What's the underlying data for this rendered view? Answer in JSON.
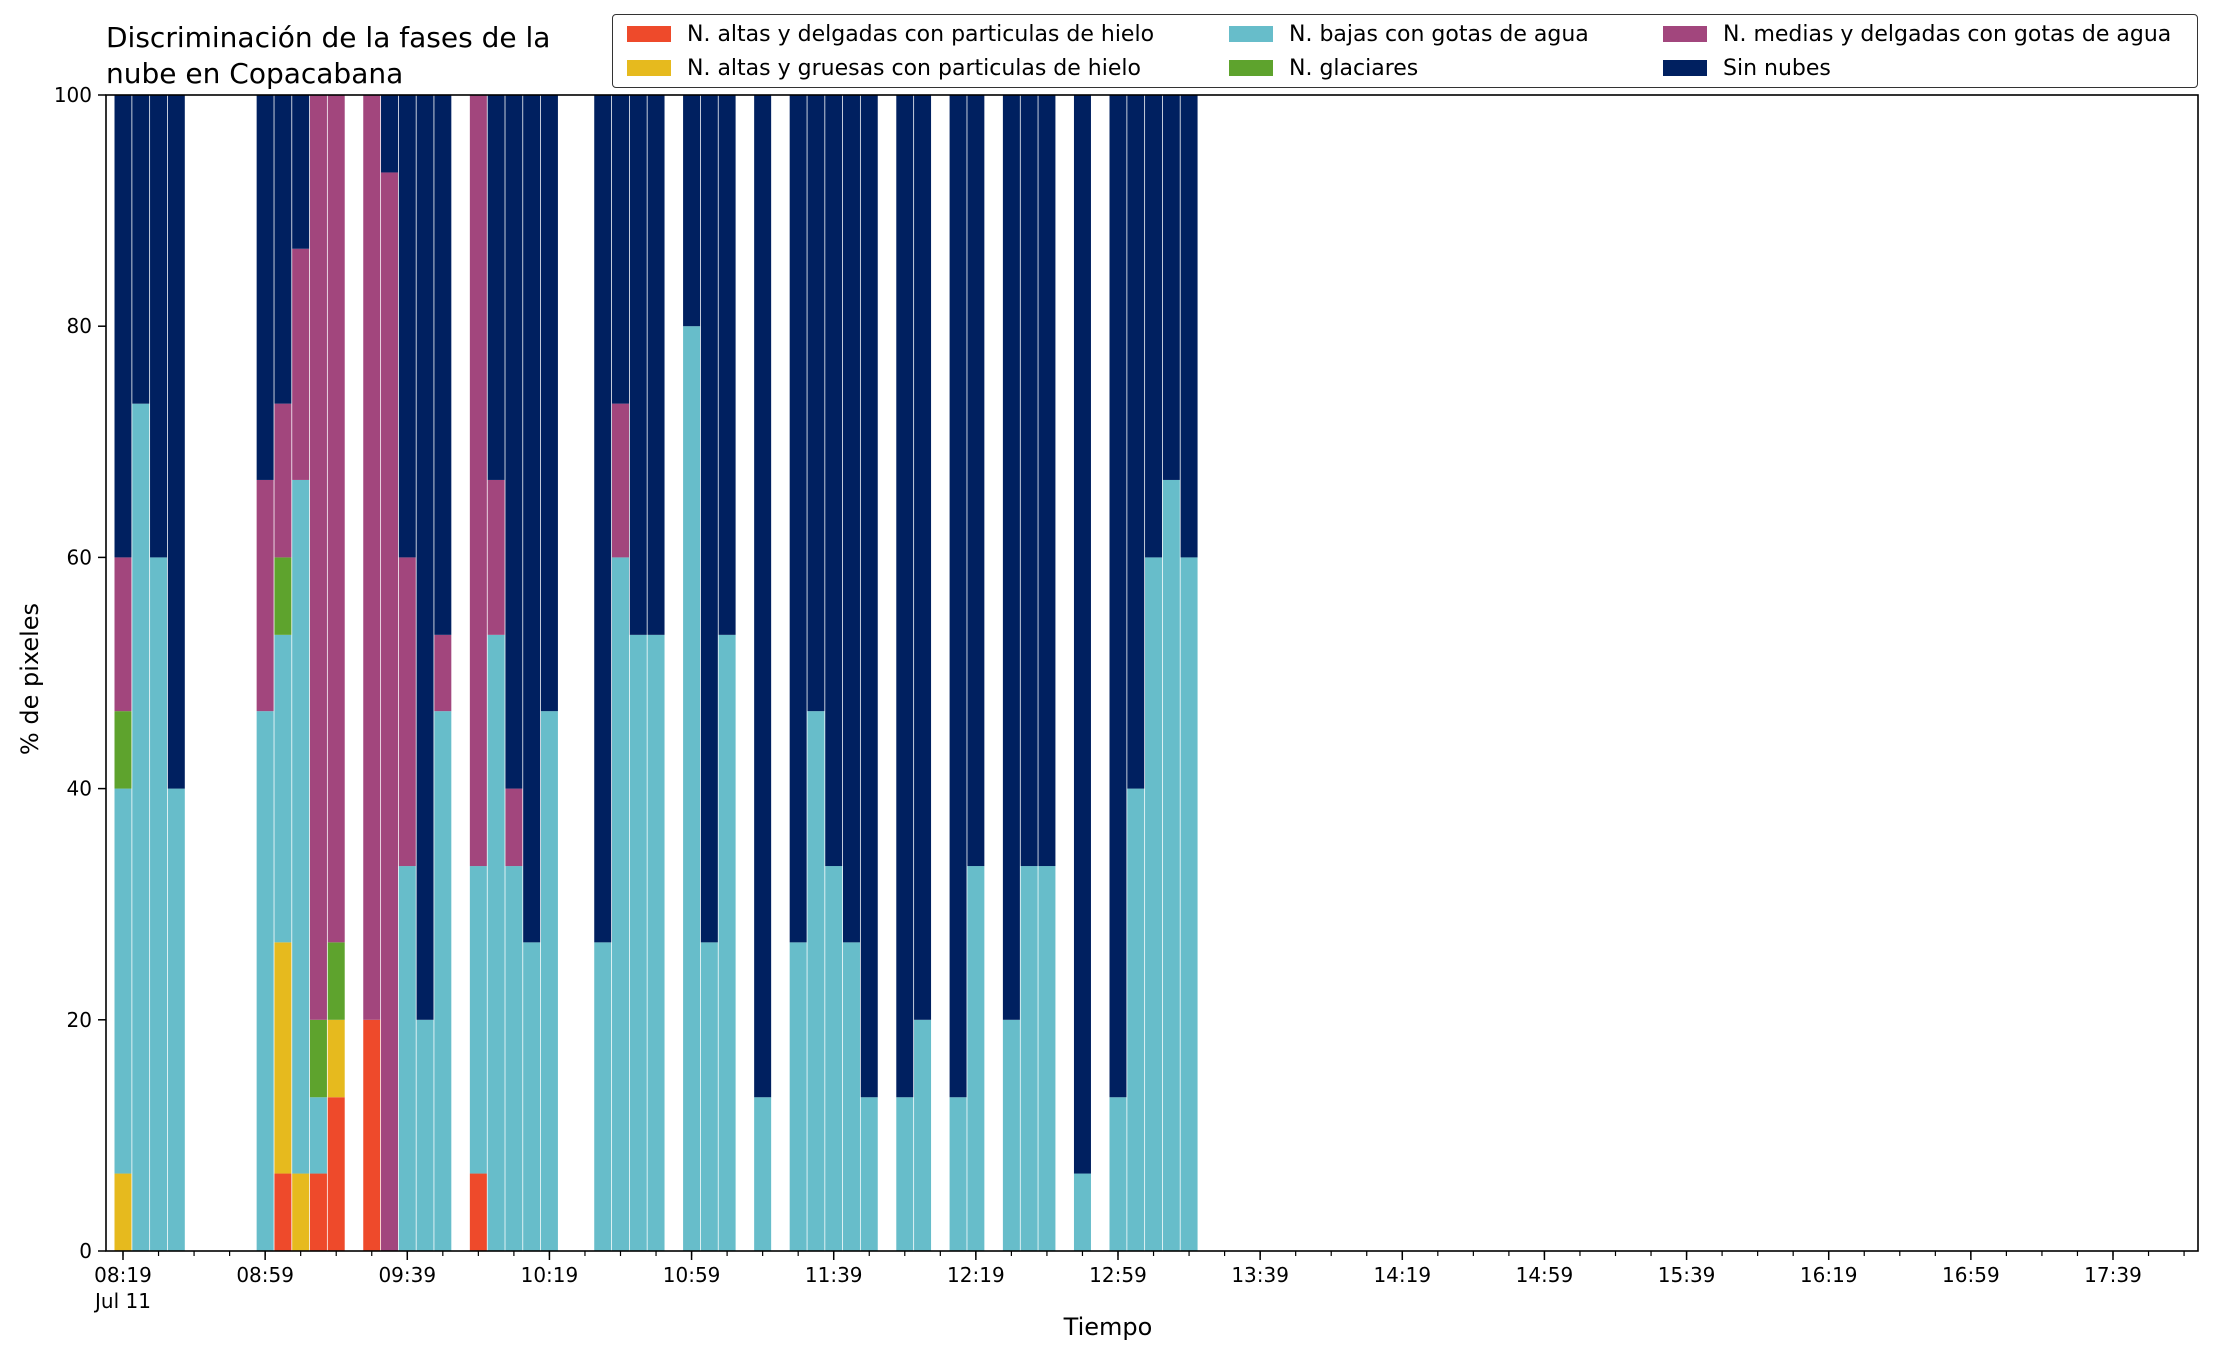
{
  "chart_data": {
    "type": "bar",
    "stacked": true,
    "title_lines": [
      "Discriminación de la fases de la",
      "nube en Copacabana"
    ],
    "xlabel": "Tiempo",
    "ylabel": "% de pixeles",
    "ylim": [
      0,
      100
    ],
    "y_ticks": [
      "0",
      "20",
      "40",
      "60",
      "80",
      "100"
    ],
    "x_tick_labels": [
      "08:19",
      "08:59",
      "09:39",
      "10:19",
      "10:59",
      "11:39",
      "12:19",
      "12:59",
      "13:39",
      "14:19",
      "14:59",
      "15:39",
      "16:19",
      "16:59",
      "17:39"
    ],
    "x_date_label": "Jul 11",
    "grid": false,
    "legend_position": "top-right",
    "series": [
      {
        "name": "N. altas y delgadas con particulas de hielo",
        "color": "#EE4A2B"
      },
      {
        "name": "N. altas y gruesas con particulas de hielo",
        "color": "#E6BA1E"
      },
      {
        "name": "N. bajas con gotas de agua",
        "color": "#67BDCA"
      },
      {
        "name": "N. glaciares",
        "color": "#5EA32D"
      },
      {
        "name": "N. medias y delgadas con gotas de agua",
        "color": "#A2467D"
      },
      {
        "name": "Sin nubes",
        "color": "#002060"
      }
    ],
    "bars": [
      {
        "time": "08:19",
        "values": [
          0,
          6.7,
          33.3,
          6.7,
          13.3,
          40
        ]
      },
      {
        "time": "08:24",
        "values": [
          0,
          0,
          73.3,
          0,
          0,
          26.7
        ]
      },
      {
        "time": "08:29",
        "values": [
          0,
          0,
          60,
          0,
          0,
          40
        ]
      },
      {
        "time": "08:34",
        "values": [
          0,
          0,
          40,
          0,
          0,
          60
        ]
      },
      {
        "time": "08:59",
        "values": [
          0,
          0,
          46.7,
          0,
          20,
          33.3
        ]
      },
      {
        "time": "09:04",
        "values": [
          6.7,
          20,
          26.6,
          6.7,
          13.3,
          26.7
        ]
      },
      {
        "time": "09:09",
        "values": [
          0,
          6.7,
          60,
          0,
          20,
          13.3
        ]
      },
      {
        "time": "09:14",
        "values": [
          6.7,
          0,
          6.6,
          6.7,
          80,
          0
        ]
      },
      {
        "time": "09:19",
        "values": [
          13.3,
          6.7,
          0,
          6.7,
          73.3,
          0
        ]
      },
      {
        "time": "09:29",
        "values": [
          20,
          0,
          0,
          0,
          80,
          0
        ]
      },
      {
        "time": "09:34",
        "values": [
          0,
          0,
          0,
          0,
          93.3,
          6.7
        ]
      },
      {
        "time": "09:39",
        "values": [
          0,
          0,
          33.3,
          0,
          26.7,
          40
        ]
      },
      {
        "time": "09:44",
        "values": [
          0,
          0,
          20,
          0,
          0,
          80
        ]
      },
      {
        "time": "09:49",
        "values": [
          0,
          0,
          46.7,
          0,
          6.6,
          46.7
        ]
      },
      {
        "time": "09:59",
        "values": [
          6.7,
          0,
          26.6,
          0,
          66.7,
          0
        ]
      },
      {
        "time": "10:04",
        "values": [
          0,
          0,
          53.3,
          0,
          13.4,
          33.3
        ]
      },
      {
        "time": "10:09",
        "values": [
          0,
          0,
          33.3,
          0,
          6.7,
          60
        ]
      },
      {
        "time": "10:14",
        "values": [
          0,
          0,
          26.7,
          0,
          0,
          73.3
        ]
      },
      {
        "time": "10:19",
        "values": [
          0,
          0,
          46.7,
          0,
          0,
          53.3
        ]
      },
      {
        "time": "10:34",
        "values": [
          0,
          0,
          26.7,
          0,
          0,
          73.3
        ]
      },
      {
        "time": "10:39",
        "values": [
          0,
          0,
          60,
          0,
          13.3,
          26.7
        ]
      },
      {
        "time": "10:44",
        "values": [
          0,
          0,
          53.3,
          0,
          0,
          46.7
        ]
      },
      {
        "time": "10:49",
        "values": [
          0,
          0,
          53.3,
          0,
          0,
          46.7
        ]
      },
      {
        "time": "10:59",
        "values": [
          0,
          0,
          80,
          0,
          0,
          20
        ]
      },
      {
        "time": "11:04",
        "values": [
          0,
          0,
          26.7,
          0,
          0,
          73.3
        ]
      },
      {
        "time": "11:09",
        "values": [
          0,
          0,
          53.3,
          0,
          0,
          46.7
        ]
      },
      {
        "time": "11:19",
        "values": [
          0,
          0,
          13.3,
          0,
          0,
          86.7
        ]
      },
      {
        "time": "11:29",
        "values": [
          0,
          0,
          26.7,
          0,
          0,
          73.3
        ]
      },
      {
        "time": "11:34",
        "values": [
          0,
          0,
          46.7,
          0,
          0,
          53.3
        ]
      },
      {
        "time": "11:39",
        "values": [
          0,
          0,
          33.3,
          0,
          0,
          66.7
        ]
      },
      {
        "time": "11:44",
        "values": [
          0,
          0,
          26.7,
          0,
          0,
          73.3
        ]
      },
      {
        "time": "11:49",
        "values": [
          0,
          0,
          13.3,
          0,
          0,
          86.7
        ]
      },
      {
        "time": "11:59",
        "values": [
          0,
          0,
          13.3,
          0,
          0,
          86.7
        ]
      },
      {
        "time": "12:04",
        "values": [
          0,
          0,
          20,
          0,
          0,
          80
        ]
      },
      {
        "time": "12:14",
        "values": [
          0,
          0,
          13.3,
          0,
          0,
          86.7
        ]
      },
      {
        "time": "12:19",
        "values": [
          0,
          0,
          33.3,
          0,
          0,
          66.7
        ]
      },
      {
        "time": "12:29",
        "values": [
          0,
          0,
          20,
          0,
          0,
          80
        ]
      },
      {
        "time": "12:34",
        "values": [
          0,
          0,
          33.3,
          0,
          0,
          66.7
        ]
      },
      {
        "time": "12:39",
        "values": [
          0,
          0,
          33.3,
          0,
          0,
          66.7
        ]
      },
      {
        "time": "12:49",
        "values": [
          0,
          0,
          6.7,
          0,
          0,
          93.3
        ]
      },
      {
        "time": "12:59",
        "values": [
          0,
          0,
          13.3,
          0,
          0,
          86.7
        ]
      },
      {
        "time": "13:04",
        "values": [
          0,
          0,
          40,
          0,
          0,
          60
        ]
      },
      {
        "time": "13:09",
        "values": [
          0,
          0,
          60,
          0,
          0,
          40
        ]
      },
      {
        "time": "13:14",
        "values": [
          0,
          0,
          66.7,
          0,
          0,
          33.3
        ]
      },
      {
        "time": "13:19",
        "values": [
          0,
          0,
          60,
          0,
          0,
          40
        ]
      }
    ]
  }
}
